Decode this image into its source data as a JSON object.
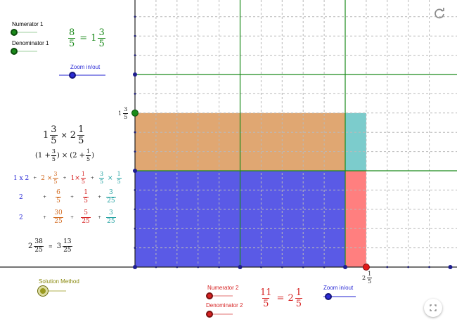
{
  "colors": {
    "green": "#1a8a1a",
    "blue": "#2b2bd6",
    "red": "#d62222",
    "orange": "#d2691e",
    "teal": "#20a0a0",
    "olive": "#8a8a10",
    "orange_fill": "#e0a772",
    "blue_fill": "#5a5ae6",
    "teal_fill": "#7ccccc",
    "red_fill": "#ff7f7f"
  },
  "sliders": {
    "numerator1": {
      "label": "Numerator 1"
    },
    "denominator1": {
      "label": "Denominator 1"
    },
    "zoom1": {
      "label": "Zoom in/out"
    },
    "solution": {
      "label": "Solution Method"
    },
    "numerator2": {
      "label": "Numerator 2"
    },
    "denominator2": {
      "label": "Denominator 2"
    },
    "zoom2": {
      "label": "Zoom in/out"
    }
  },
  "equation1": {
    "num": "8",
    "den": "5",
    "eq": "=",
    "whole": "1",
    "mnum": "3",
    "mden": "5"
  },
  "equation2": {
    "num": "11",
    "den": "5",
    "eq": "=",
    "whole": "2",
    "mnum": "1",
    "mden": "5"
  },
  "axis_labels": {
    "y": {
      "whole": "1",
      "num": "3",
      "den": "5"
    },
    "x": {
      "whole": "2",
      "num": "1",
      "den": "5"
    }
  },
  "solution": {
    "product": {
      "w1": "1",
      "n1": "3",
      "d1": "5",
      "times": "×",
      "w2": "2",
      "n2": "1",
      "d2": "5"
    },
    "expanded": {
      "open1": "(1 +",
      "n1": "3",
      "d1": "5",
      "close1": ")",
      "times": "×",
      "open2": "(2 +",
      "n2": "1",
      "d2": "5",
      "close2": ")"
    },
    "terms_row": {
      "t1": "1 x 2",
      "t2_a": "2 ×",
      "t2_n": "3",
      "t2_d": "5",
      "t3_a": "1×",
      "t3_n": "1",
      "t3_d": "5",
      "t4_n1": "3",
      "t4_d1": "5",
      "t4_x": "×",
      "t4_n2": "1",
      "t4_d2": "5",
      "plus": "+"
    },
    "row2": {
      "a": "2",
      "b_n": "6",
      "b_d": "5",
      "c_n": "1",
      "c_d": "5",
      "d_n": "3",
      "d_d": "25",
      "plus": "+"
    },
    "row3": {
      "a": "2",
      "b_n": "30",
      "b_d": "25",
      "c_n": "5",
      "c_d": "25",
      "d_n": "3",
      "d_d": "25",
      "plus": "+"
    },
    "result": {
      "w1": "2",
      "n1": "38",
      "d1": "25",
      "eq": "=",
      "w2": "3",
      "n2": "13",
      "d2": "25"
    }
  }
}
